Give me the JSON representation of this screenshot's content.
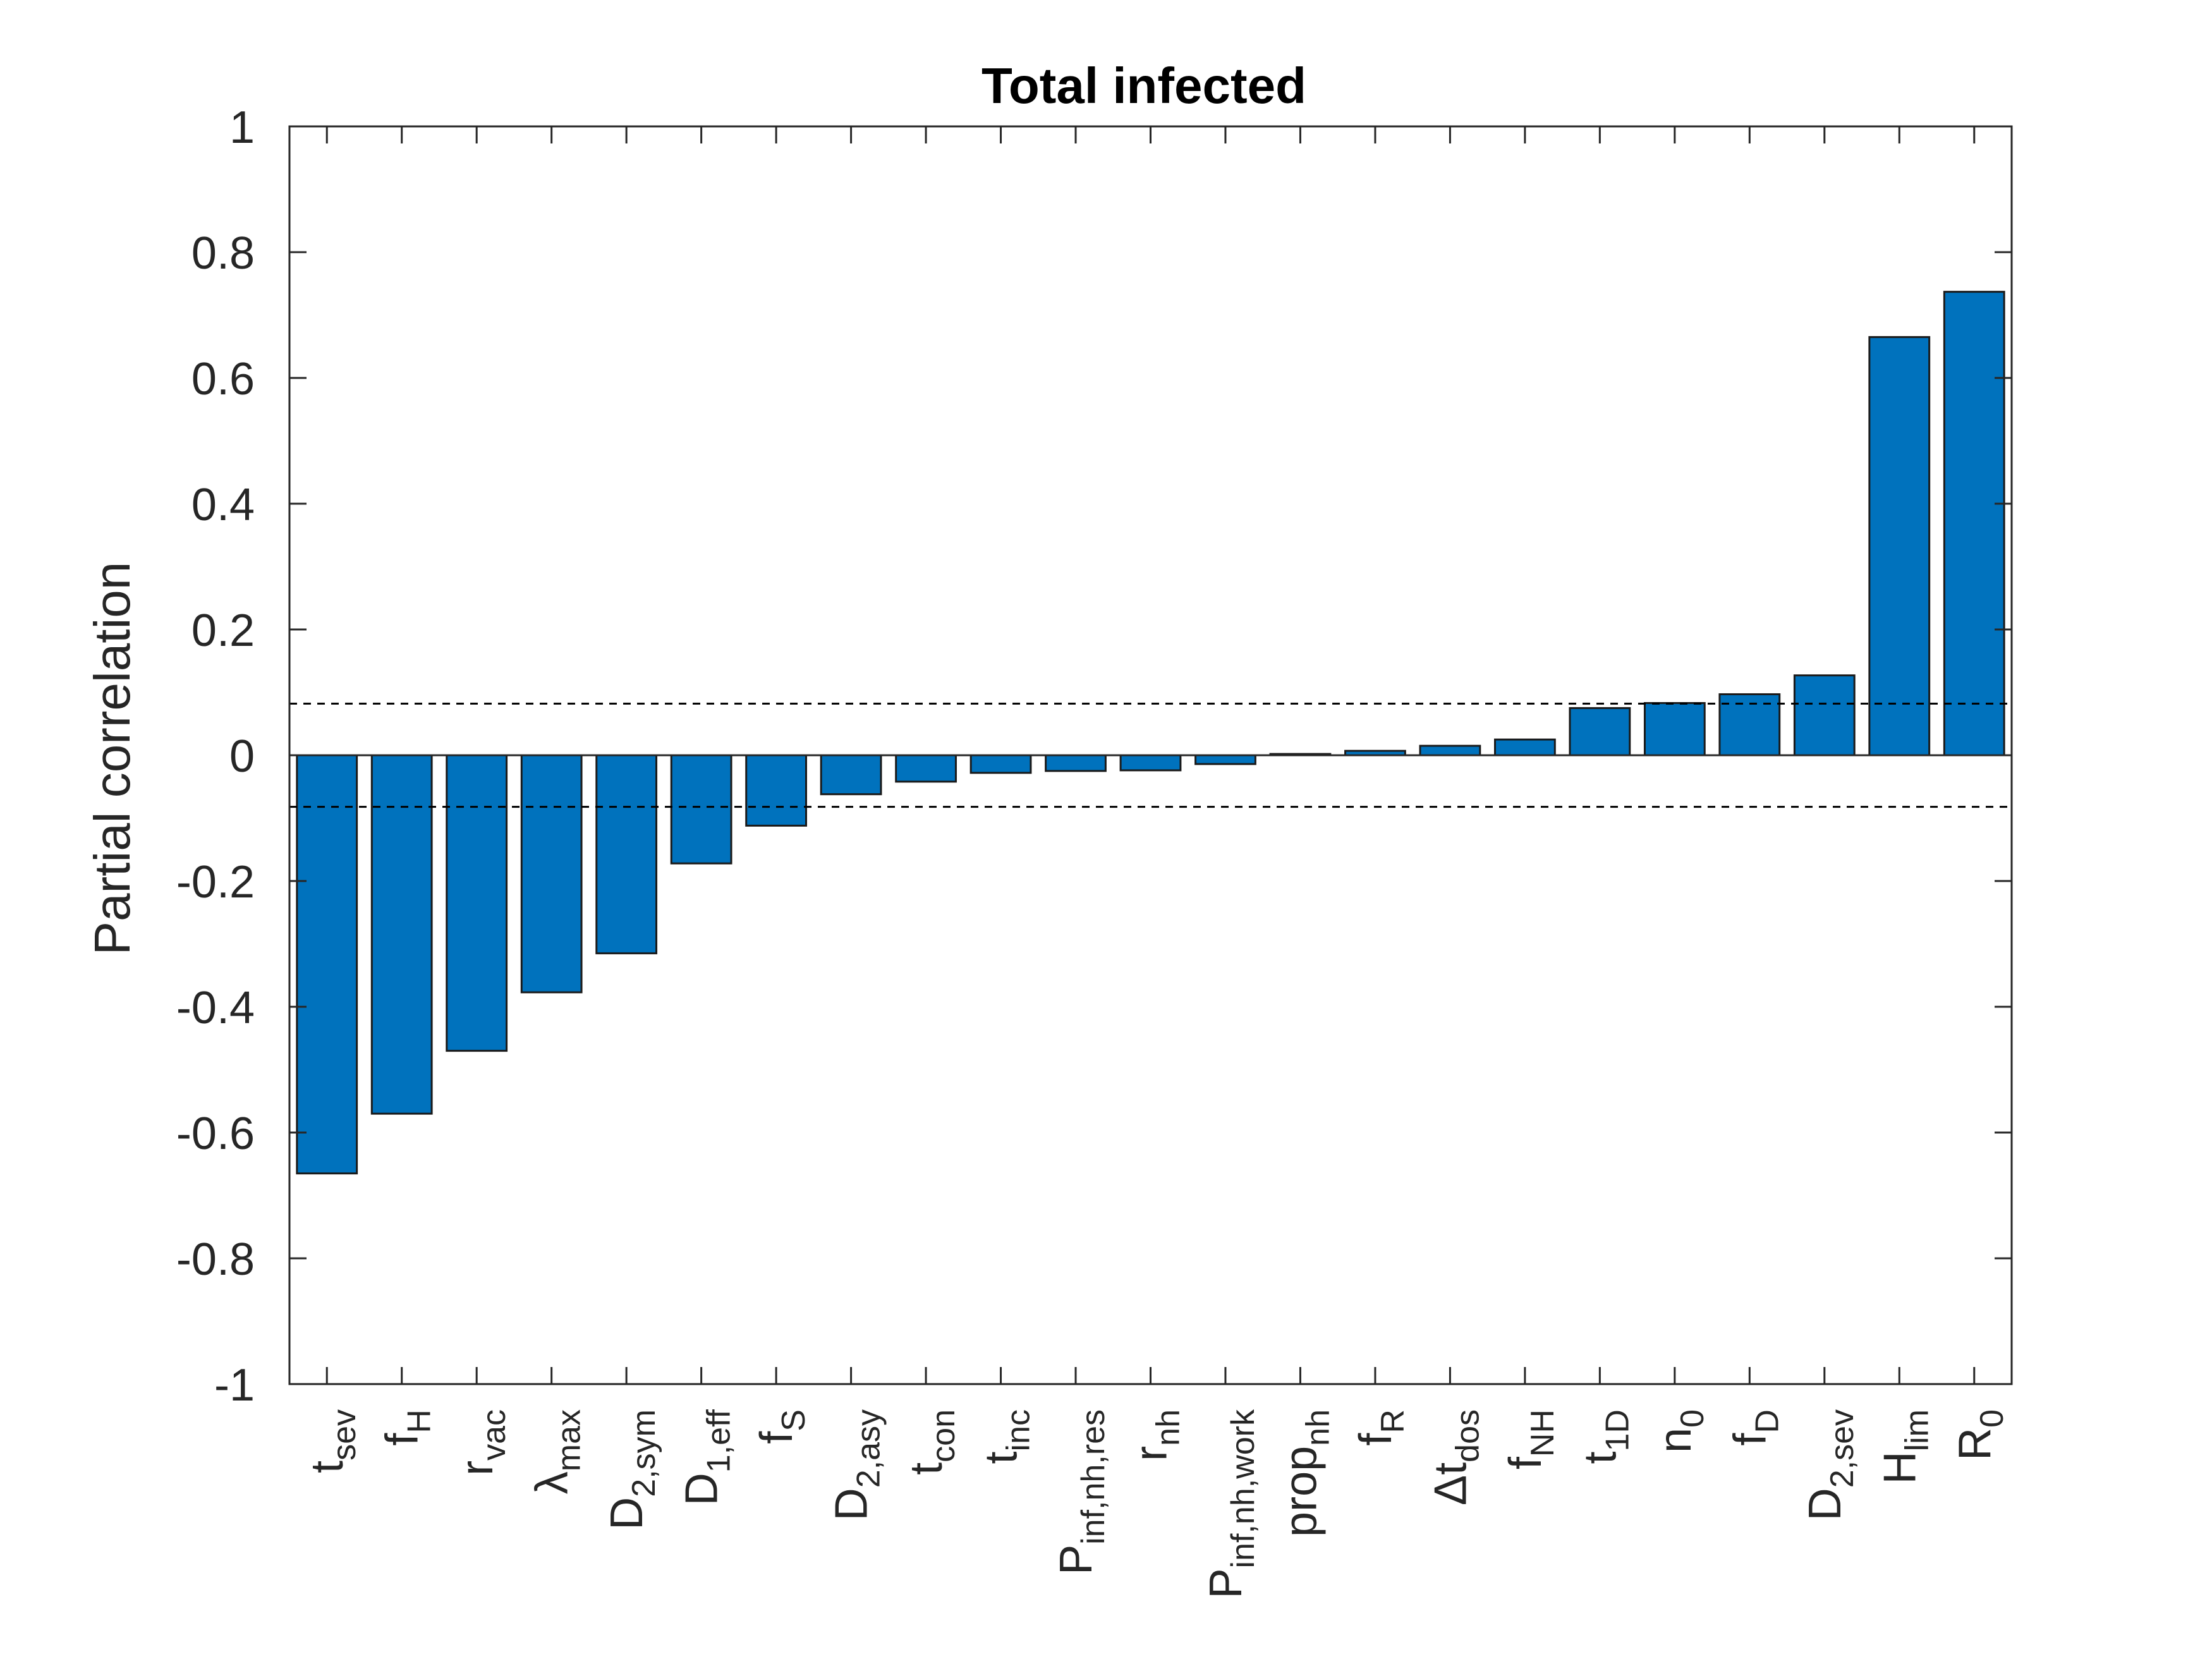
{
  "chart_data": {
    "type": "bar",
    "title": "Total infected",
    "xlabel": "",
    "ylabel": "Partial correlation",
    "ylim": [
      -1,
      1
    ],
    "yticks": [
      -1,
      -0.8,
      -0.6,
      -0.4,
      -0.2,
      0,
      0.2,
      0.4,
      0.6,
      0.8,
      1
    ],
    "ytick_labels": [
      "-1",
      "-0.8",
      "-0.6",
      "-0.4",
      "-0.2",
      "0",
      "0.2",
      "0.4",
      "0.6",
      "0.8",
      "1"
    ],
    "grid": false,
    "bar_color": "#0072BD",
    "edge_color": "#1a1a1a",
    "significance_threshold": 0.082,
    "categories": [
      {
        "base": "t",
        "sub": "sev"
      },
      {
        "base": "f",
        "sub": "H"
      },
      {
        "base": "r",
        "sub": "vac"
      },
      {
        "base": "λ",
        "sub": "max"
      },
      {
        "base": "D",
        "sub": "2,sym"
      },
      {
        "base": "D",
        "sub": "1,eff"
      },
      {
        "base": "f",
        "sub": "S"
      },
      {
        "base": "D",
        "sub": "2,asy"
      },
      {
        "base": "t",
        "sub": "con"
      },
      {
        "base": "t",
        "sub": "inc"
      },
      {
        "base": "P",
        "sub": "inf,nh,res"
      },
      {
        "base": "r",
        "sub": "nh"
      },
      {
        "base": "P",
        "sub": "inf,nh,work"
      },
      {
        "base": "prop",
        "sub": "nh"
      },
      {
        "base": "f",
        "sub": "R"
      },
      {
        "base": "Δt",
        "sub": "dos"
      },
      {
        "base": "f",
        "sub": "NH"
      },
      {
        "base": "t",
        "sub": "1D"
      },
      {
        "base": "n",
        "sub": "0"
      },
      {
        "base": "f",
        "sub": "D"
      },
      {
        "base": "D",
        "sub": "2,sev"
      },
      {
        "base": "H",
        "sub": "lim"
      },
      {
        "base": "R",
        "sub": "0"
      }
    ],
    "values": [
      -0.665,
      -0.57,
      -0.47,
      -0.377,
      -0.315,
      -0.172,
      -0.112,
      -0.062,
      -0.042,
      -0.028,
      -0.025,
      -0.024,
      -0.014,
      0.002,
      0.007,
      0.015,
      0.025,
      0.075,
      0.083,
      0.097,
      0.127,
      0.665,
      0.737
    ]
  }
}
